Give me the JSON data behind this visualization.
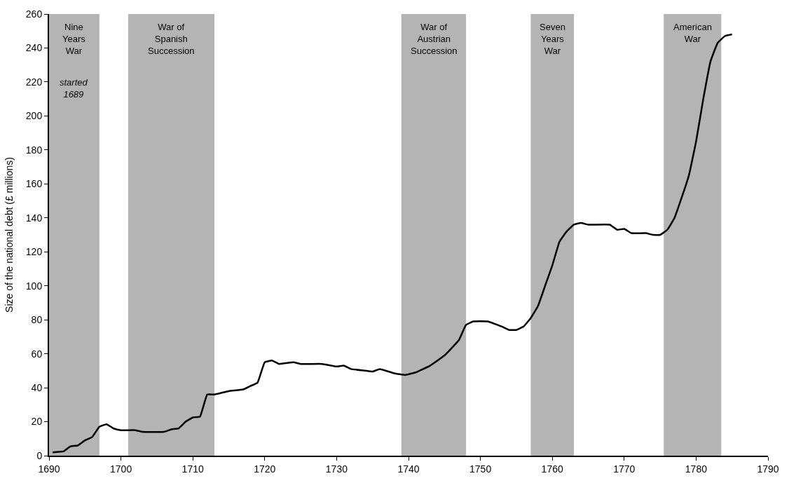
{
  "chart_data": {
    "type": "line",
    "ylabel": "Size of the national debt (£ millions)",
    "x": [
      1690.5,
      1692,
      1693,
      1694,
      1695,
      1696,
      1697,
      1698,
      1699,
      1700,
      1702,
      1703,
      1706,
      1707,
      1708,
      1709,
      1710,
      1711,
      1712,
      1713,
      1715,
      1717,
      1718,
      1719,
      1720,
      1721,
      1722,
      1724,
      1725,
      1728,
      1730,
      1731,
      1732,
      1734,
      1735,
      1736,
      1738,
      1739.5,
      1741,
      1743,
      1745,
      1747,
      1748,
      1749,
      1751,
      1753,
      1754,
      1755,
      1756,
      1757,
      1758,
      1759,
      1760,
      1761,
      1762,
      1763,
      1764,
      1765,
      1768,
      1769,
      1770,
      1771,
      1773,
      1774,
      1775,
      1776,
      1777,
      1778,
      1779,
      1780,
      1781,
      1782,
      1783,
      1784,
      1785
    ],
    "series": [
      {
        "color": "#000000",
        "values": [
          2,
          2.5,
          5.5,
          6,
          9,
          11,
          17,
          18.5,
          16,
          15,
          15,
          14,
          14,
          15.5,
          16,
          20,
          22.5,
          23,
          36,
          36,
          38,
          39,
          41,
          43,
          55,
          56,
          54,
          55,
          54,
          54,
          52.5,
          53,
          51,
          50,
          49.5,
          51,
          48.5,
          47.5,
          49,
          53,
          59,
          68,
          77,
          79,
          79,
          76,
          74,
          74,
          76,
          81,
          88,
          100,
          112,
          126,
          132,
          136,
          137,
          136,
          136,
          133,
          133.5,
          131,
          131,
          130,
          130,
          133,
          140,
          152,
          165,
          185,
          210,
          232,
          243,
          247,
          248
        ]
      }
    ],
    "xlim": [
      1690,
      1790
    ],
    "ylim": [
      0,
      260
    ],
    "xticks": [
      1690,
      1700,
      1710,
      1720,
      1730,
      1740,
      1750,
      1760,
      1770,
      1780,
      1790
    ],
    "yticks": [
      0,
      20,
      40,
      60,
      80,
      100,
      120,
      140,
      160,
      180,
      200,
      220,
      240,
      260
    ],
    "bands": [
      {
        "axis": "x",
        "from": 1690,
        "to": 1697,
        "label": "Nine\nYears\nWar",
        "color": "#b4b4b4"
      },
      {
        "axis": "x",
        "from": 1701,
        "to": 1713,
        "label": "War of\nSpanish\nSuccession",
        "color": "#b4b4b4"
      },
      {
        "axis": "x",
        "from": 1739,
        "to": 1748,
        "label": "War of\nAustrian\nSuccession",
        "color": "#b4b4b4"
      },
      {
        "axis": "x",
        "from": 1757,
        "to": 1763,
        "label": "Seven\nYears\nWar",
        "color": "#b4b4b4"
      },
      {
        "axis": "x",
        "from": 1775.5,
        "to": 1783.5,
        "label": "American\nWar",
        "color": "#b4b4b4"
      }
    ],
    "annotations": [
      "started\n1689"
    ],
    "line_style": "solid"
  }
}
